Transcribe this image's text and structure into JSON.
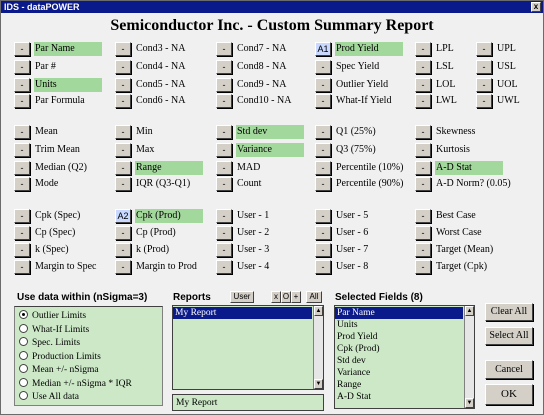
{
  "window": {
    "title": "IDS - dataPOWER",
    "close_glyph": "x"
  },
  "report_title": "Semiconductor  Inc. - Custom Summary Report",
  "fields": [
    {
      "btn": "-",
      "label": "Par Name",
      "hl": true
    },
    {
      "btn": "-",
      "label": "Par #",
      "hl": false
    },
    {
      "btn": "-",
      "label": "Units",
      "hl": true
    },
    {
      "btn": "-",
      "label": "Par Formula",
      "hl": false
    },
    {
      "btn": "-",
      "label": "Cond3 - NA",
      "hl": false
    },
    {
      "btn": "-",
      "label": "Cond4 - NA",
      "hl": false
    },
    {
      "btn": "-",
      "label": "Cond5 - NA",
      "hl": false
    },
    {
      "btn": "-",
      "label": "Cond6 - NA",
      "hl": false
    },
    {
      "btn": "-",
      "label": "Cond7 - NA",
      "hl": false
    },
    {
      "btn": "-",
      "label": "Cond8 - NA",
      "hl": false
    },
    {
      "btn": "-",
      "label": "Cond9 - NA",
      "hl": false
    },
    {
      "btn": "-",
      "label": "Cond10 - NA",
      "hl": false
    },
    {
      "btn": "A1",
      "label": "Prod Yield",
      "hl": true
    },
    {
      "btn": "-",
      "label": "Spec Yield",
      "hl": false
    },
    {
      "btn": "-",
      "label": "Outlier Yield",
      "hl": false
    },
    {
      "btn": "-",
      "label": "What-If Yield",
      "hl": false
    },
    {
      "btn": "-",
      "label": "LPL",
      "hl": false
    },
    {
      "btn": "-",
      "label": "LSL",
      "hl": false
    },
    {
      "btn": "-",
      "label": "LOL",
      "hl": false
    },
    {
      "btn": "-",
      "label": "LWL",
      "hl": false
    },
    {
      "btn": "-",
      "label": "UPL",
      "hl": false
    },
    {
      "btn": "-",
      "label": "USL",
      "hl": false
    },
    {
      "btn": "-",
      "label": "UOL",
      "hl": false
    },
    {
      "btn": "-",
      "label": "UWL",
      "hl": false
    },
    {
      "btn": "-",
      "label": "Mean",
      "hl": false
    },
    {
      "btn": "-",
      "label": "Trim Mean",
      "hl": false
    },
    {
      "btn": "-",
      "label": "Median  (Q2)",
      "hl": false
    },
    {
      "btn": "-",
      "label": "Mode",
      "hl": false
    },
    {
      "btn": "-",
      "label": "Min",
      "hl": false
    },
    {
      "btn": "-",
      "label": "Max",
      "hl": false
    },
    {
      "btn": "-",
      "label": "Range",
      "hl": true
    },
    {
      "btn": "-",
      "label": "IQR  (Q3-Q1)",
      "hl": false
    },
    {
      "btn": "-",
      "label": "Std dev",
      "hl": true
    },
    {
      "btn": "-",
      "label": "Variance",
      "hl": true
    },
    {
      "btn": "-",
      "label": "MAD",
      "hl": false
    },
    {
      "btn": "-",
      "label": "Count",
      "hl": false
    },
    {
      "btn": "-",
      "label": "Q1  (25%)",
      "hl": false
    },
    {
      "btn": "-",
      "label": "Q3  (75%)",
      "hl": false
    },
    {
      "btn": "-",
      "label": "Percentile  (10%)",
      "hl": false
    },
    {
      "btn": "-",
      "label": "Percentile  (90%)",
      "hl": false
    },
    {
      "btn": "-",
      "label": "Skewness",
      "hl": false
    },
    {
      "btn": "-",
      "label": "Kurtosis",
      "hl": false
    },
    {
      "btn": "-",
      "label": "A-D Stat",
      "hl": true
    },
    {
      "btn": "-",
      "label": "A-D Norm?  (0.05)",
      "hl": false
    },
    {
      "btn": "-",
      "label": "Cpk (Spec)",
      "hl": false
    },
    {
      "btn": "-",
      "label": "Cp (Spec)",
      "hl": false
    },
    {
      "btn": "-",
      "label": "k  (Spec)",
      "hl": false
    },
    {
      "btn": "-",
      "label": "Margin to Spec",
      "hl": false
    },
    {
      "btn": "A2",
      "label": "Cpk (Prod)",
      "hl": true
    },
    {
      "btn": "-",
      "label": "Cp (Prod)",
      "hl": false
    },
    {
      "btn": "-",
      "label": "k (Prod)",
      "hl": false
    },
    {
      "btn": "-",
      "label": "Margin to Prod",
      "hl": false
    },
    {
      "btn": "-",
      "label": "User - 1",
      "hl": false
    },
    {
      "btn": "-",
      "label": "User - 2",
      "hl": false
    },
    {
      "btn": "-",
      "label": "User - 3",
      "hl": false
    },
    {
      "btn": "-",
      "label": "User - 4",
      "hl": false
    },
    {
      "btn": "-",
      "label": "User - 5",
      "hl": false
    },
    {
      "btn": "-",
      "label": "User - 6",
      "hl": false
    },
    {
      "btn": "-",
      "label": "User - 7",
      "hl": false
    },
    {
      "btn": "-",
      "label": "User - 8",
      "hl": false
    },
    {
      "btn": "-",
      "label": "Best Case",
      "hl": false
    },
    {
      "btn": "-",
      "label": "Worst Case",
      "hl": false
    },
    {
      "btn": "-",
      "label": "Target (Mean)",
      "hl": false
    },
    {
      "btn": "-",
      "label": "Target (Cpk)",
      "hl": false
    }
  ],
  "use_data": {
    "title": "Use data within  (nSigma=3)",
    "options": [
      "Outlier Limits",
      "What-If Limits",
      "Spec. Limits",
      "Production Limits",
      "Mean +/-  nSigma",
      "Median +/- nSigma * IQR",
      "Use All data"
    ],
    "selected_index": 0
  },
  "reports": {
    "title": "Reports",
    "user_btn": "User",
    "icon_btns": [
      "x",
      "O",
      "+"
    ],
    "all_btn": "All",
    "items": [
      "My Report"
    ],
    "selected_index": 0,
    "current": "My Report"
  },
  "selected_fields": {
    "title": "Selected Fields  (8)",
    "items": [
      "Par Name",
      "Units",
      "Prod Yield",
      "Cpk (Prod)",
      "Std dev",
      "Variance",
      "Range",
      "A-D Stat"
    ],
    "selected_index": 0
  },
  "buttons": {
    "clear_all": "Clear All",
    "select_all": "Select All",
    "cancel": "Cancel",
    "ok": "OK"
  },
  "scroll": {
    "up": "▲",
    "down": "▼"
  }
}
